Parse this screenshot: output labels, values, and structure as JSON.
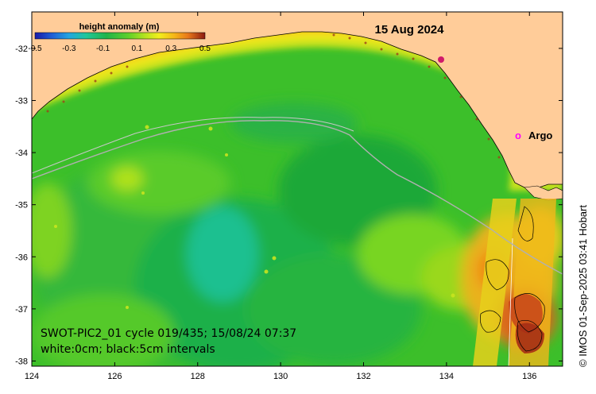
{
  "title": "15 Aug 2024",
  "colorbar": {
    "title": "height anomaly (m)",
    "ticks": [
      "-0.5",
      "-0.3",
      "-0.1",
      "0.1",
      "0.3",
      "0.5"
    ],
    "range": [
      -0.5,
      0.5
    ],
    "colors": [
      "#1a1aa8",
      "#1f5fd6",
      "#22a5e0",
      "#1fc79a",
      "#21b44a",
      "#5fd02a",
      "#b8e41f",
      "#f2ee1c",
      "#f5b518",
      "#e8781a",
      "#c24815",
      "#8c1a12"
    ]
  },
  "axes": {
    "x_ticks": [
      "124",
      "126",
      "128",
      "130",
      "132",
      "134",
      "136"
    ],
    "y_ticks": [
      "-32",
      "-33",
      "-34",
      "-35",
      "-36",
      "-37",
      "-38"
    ],
    "x_range": [
      124,
      136.8
    ],
    "y_range": [
      -38.1,
      -31.3
    ]
  },
  "legend": {
    "argo_marker": "o",
    "argo_label": "Argo",
    "argo_color": "#ff00ff"
  },
  "info": {
    "line1": "SWOT-PIC2_01 cycle 019/435; 15/08/24 07:37",
    "line2": "white:0cm; black:5cm intervals"
  },
  "credit": "© IMOS 01-Sep-2025 03:41 Hobart",
  "colors": {
    "land": "#ffcc99",
    "coast": "#000000",
    "track": "#b0b0b0"
  }
}
